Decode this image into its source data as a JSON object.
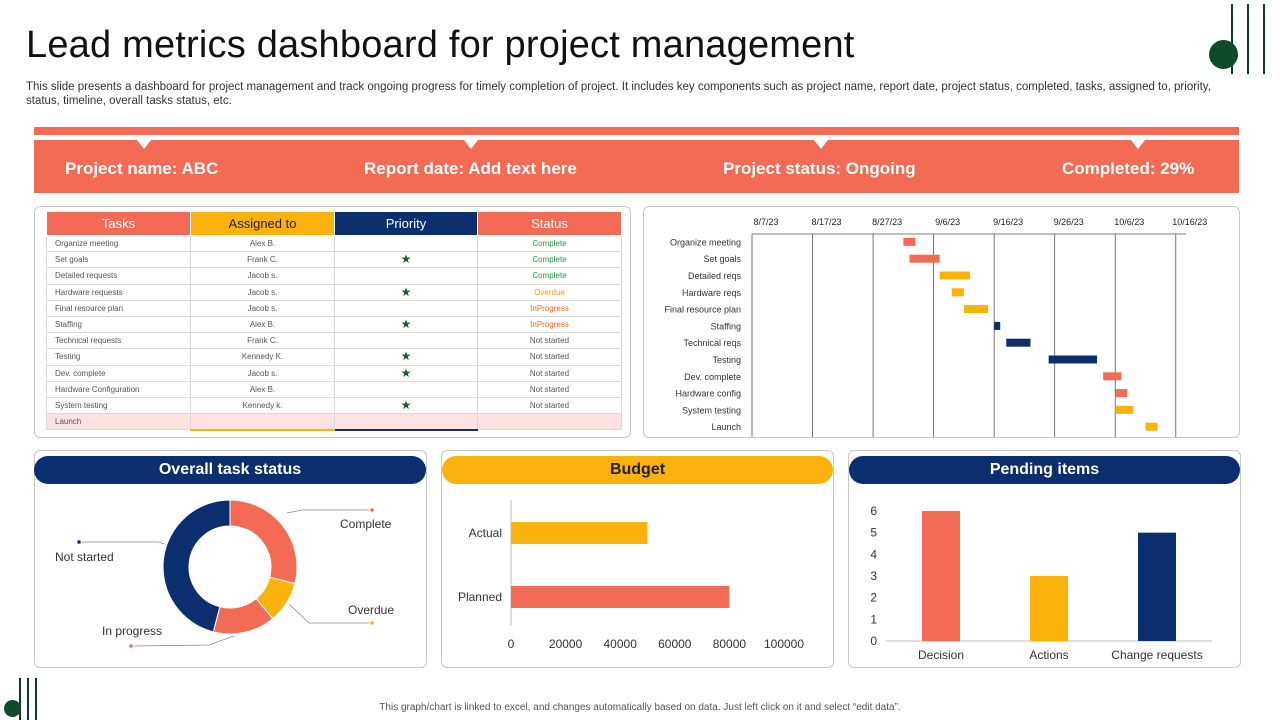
{
  "header": {
    "title": "Lead metrics dashboard for project management",
    "subtitle": "This slide presents a dashboard for project management and track ongoing progress for timely completion of project. It includes key components such as project name, report date, project status, completed, tasks, assigned to, priority,  status, timeline, overall tasks status, etc."
  },
  "banner": {
    "project_name": "Project name: ABC",
    "report_date": "Report date: Add text here",
    "project_status": "Project status:  Ongoing",
    "completed": "Completed: 29%"
  },
  "table": {
    "headers": [
      "Tasks",
      "Assigned to",
      "Priority",
      "Status"
    ],
    "header_colors": [
      "#f36b55",
      "#fbb20d",
      "#0b2e6e",
      "#f36b55"
    ],
    "rows": [
      {
        "task": "Organize meeting",
        "assigned": "Alex B.",
        "priority": false,
        "status": "Complete"
      },
      {
        "task": "Set goals",
        "assigned": "Frank C.",
        "priority": true,
        "status": "Complete"
      },
      {
        "task": "Detailed requests",
        "assigned": "Jacob  s.",
        "priority": false,
        "status": "Complete"
      },
      {
        "task": "Hardware requests",
        "assigned": "Jacob  s.",
        "priority": true,
        "status": "Overdue"
      },
      {
        "task": "Final resource plan",
        "assigned": "Jacob  s.",
        "priority": false,
        "status": "InProgress"
      },
      {
        "task": "Staffing",
        "assigned": "Alex B.",
        "priority": true,
        "status": "InProgress"
      },
      {
        "task": "Technical requests",
        "assigned": "Frank C.",
        "priority": false,
        "status": "Not started"
      },
      {
        "task": "Testing",
        "assigned": "Kennedy  K.",
        "priority": true,
        "status": "Not started"
      },
      {
        "task": "Dev. complete",
        "assigned": "Jacob  s.",
        "priority": true,
        "status": "Not started"
      },
      {
        "task": "Hardware Configuration",
        "assigned": "Alex B.",
        "priority": false,
        "status": "Not started"
      },
      {
        "task": "System testing",
        "assigned": "Kennedy  k.",
        "priority": true,
        "status": "Not started"
      },
      {
        "task": "Launch",
        "assigned": "",
        "priority": false,
        "status": ""
      }
    ],
    "status_colors": {
      "Complete": "#1a9a3a",
      "Overdue": "#f0a500",
      "InProgress": "#e8641a",
      "Not started": "#555555"
    }
  },
  "sections": {
    "overall": "Overall task  status",
    "budget": "Budget",
    "pending": "Pending items"
  },
  "colors": {
    "coral": "#f36b55",
    "navy": "#0b2e6e",
    "amber": "#fbb20d"
  },
  "footnote": "This graph/chart is linked to excel, and changes automatically based on data. Just left click on it and select “edit data”.",
  "chart_data": [
    {
      "type": "gantt",
      "x_tick_labels": [
        "8/7/23",
        "8/17/23",
        "8/27/23",
        "9/6/23",
        "9/16/23",
        "9/26/23",
        "10/6/23",
        "10/16/23"
      ],
      "x_range": [
        "2023-08-07",
        "2023-10-20"
      ],
      "tasks": [
        {
          "label": "Organize meeting",
          "start": "2023-09-01",
          "end": "2023-09-03",
          "color": "#f36b55"
        },
        {
          "label": "Set goals",
          "start": "2023-09-02",
          "end": "2023-09-07",
          "color": "#f36b55"
        },
        {
          "label": "Detailed reqs",
          "start": "2023-09-07",
          "end": "2023-09-12",
          "color": "#fbb20d"
        },
        {
          "label": "Hardware reqs",
          "start": "2023-09-09",
          "end": "2023-09-11",
          "color": "#fbb20d"
        },
        {
          "label": "Final resource plan",
          "start": "2023-09-11",
          "end": "2023-09-15",
          "color": "#fbb20d"
        },
        {
          "label": "Staffing",
          "start": "2023-09-16",
          "end": "2023-09-17",
          "color": "#0b2e6e"
        },
        {
          "label": "Technical reqs",
          "start": "2023-09-18",
          "end": "2023-09-22",
          "color": "#0b2e6e"
        },
        {
          "label": "Testing",
          "start": "2023-09-25",
          "end": "2023-10-03",
          "color": "#0b2e6e"
        },
        {
          "label": "Dev. complete",
          "start": "2023-10-04",
          "end": "2023-10-07",
          "color": "#f36b55"
        },
        {
          "label": "Hardware config",
          "start": "2023-10-06",
          "end": "2023-10-08",
          "color": "#f36b55"
        },
        {
          "label": "System testing",
          "start": "2023-10-06",
          "end": "2023-10-09",
          "color": "#fbb20d"
        },
        {
          "label": "Launch",
          "start": "2023-10-11",
          "end": "2023-10-13",
          "color": "#fbb20d"
        }
      ]
    },
    {
      "type": "pie",
      "variant": "donut",
      "slices": [
        {
          "label": "Complete",
          "value": 29,
          "color": "#f36b55"
        },
        {
          "label": "Overdue",
          "value": 10,
          "color": "#fbb20d"
        },
        {
          "label": "In progress",
          "value": 15,
          "color": "#f36b55"
        },
        {
          "label": "Not started",
          "value": 46,
          "color": "#0b2e6e"
        }
      ]
    },
    {
      "type": "bar",
      "orientation": "horizontal",
      "categories": [
        "Actual",
        "Planned"
      ],
      "values": [
        50000,
        80000
      ],
      "colors": [
        "#fbb20d",
        "#f36b55"
      ],
      "xlim": [
        0,
        100000
      ],
      "x_ticks": [
        0,
        20000,
        40000,
        60000,
        80000,
        100000
      ]
    },
    {
      "type": "bar",
      "categories": [
        "Decision",
        "Actions",
        "Change requests"
      ],
      "values": [
        6,
        3,
        5
      ],
      "colors": [
        "#f36b55",
        "#fbb20d",
        "#0b2e6e"
      ],
      "ylim": [
        0,
        6
      ],
      "y_ticks": [
        0,
        1,
        2,
        3,
        4,
        5,
        6
      ]
    }
  ]
}
